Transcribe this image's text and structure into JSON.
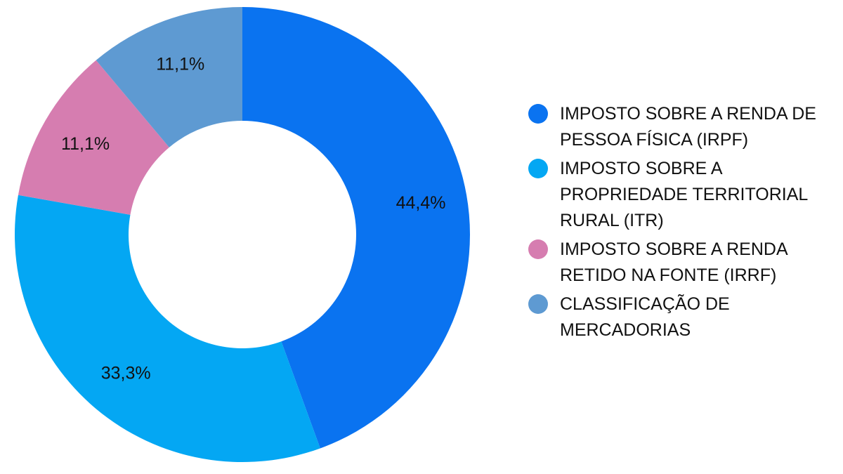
{
  "chart_data": {
    "type": "pie",
    "donut": true,
    "title": "",
    "legend_position": "right",
    "slices": [
      {
        "label": "IMPOSTO SOBRE A RENDA DE PESSOA FÍSICA (IRPF)",
        "value": 44.4,
        "value_label": "44,4%",
        "color": "#0a73f0"
      },
      {
        "label": "IMPOSTO SOBRE A PROPRIEDADE TERRITORIAL RURAL (ITR)",
        "value": 33.3,
        "value_label": "33,3%",
        "color": "#04a7f3"
      },
      {
        "label": "IMPOSTO SOBRE A RENDA RETIDO NA FONTE (IRRF)",
        "value": 11.1,
        "value_label": "11,1%",
        "color": "#d67db0"
      },
      {
        "label": "CLASSIFICAÇÃO DE MERCADORIAS",
        "value": 11.1,
        "value_label": "11,1%",
        "color": "#5e9ad2"
      }
    ]
  },
  "legend": {
    "items": [
      {
        "text": "IMPOSTO SOBRE A RENDA DE PESSOA FÍSICA (IRPF)"
      },
      {
        "text": "IMPOSTO SOBRE A PROPRIEDADE TERRITORIAL RURAL (ITR)"
      },
      {
        "text": "IMPOSTO SOBRE A RENDA RETIDO NA FONTE (IRRF)"
      },
      {
        "text": "CLASSIFICAÇÃO DE MERCADORIAS"
      }
    ]
  }
}
